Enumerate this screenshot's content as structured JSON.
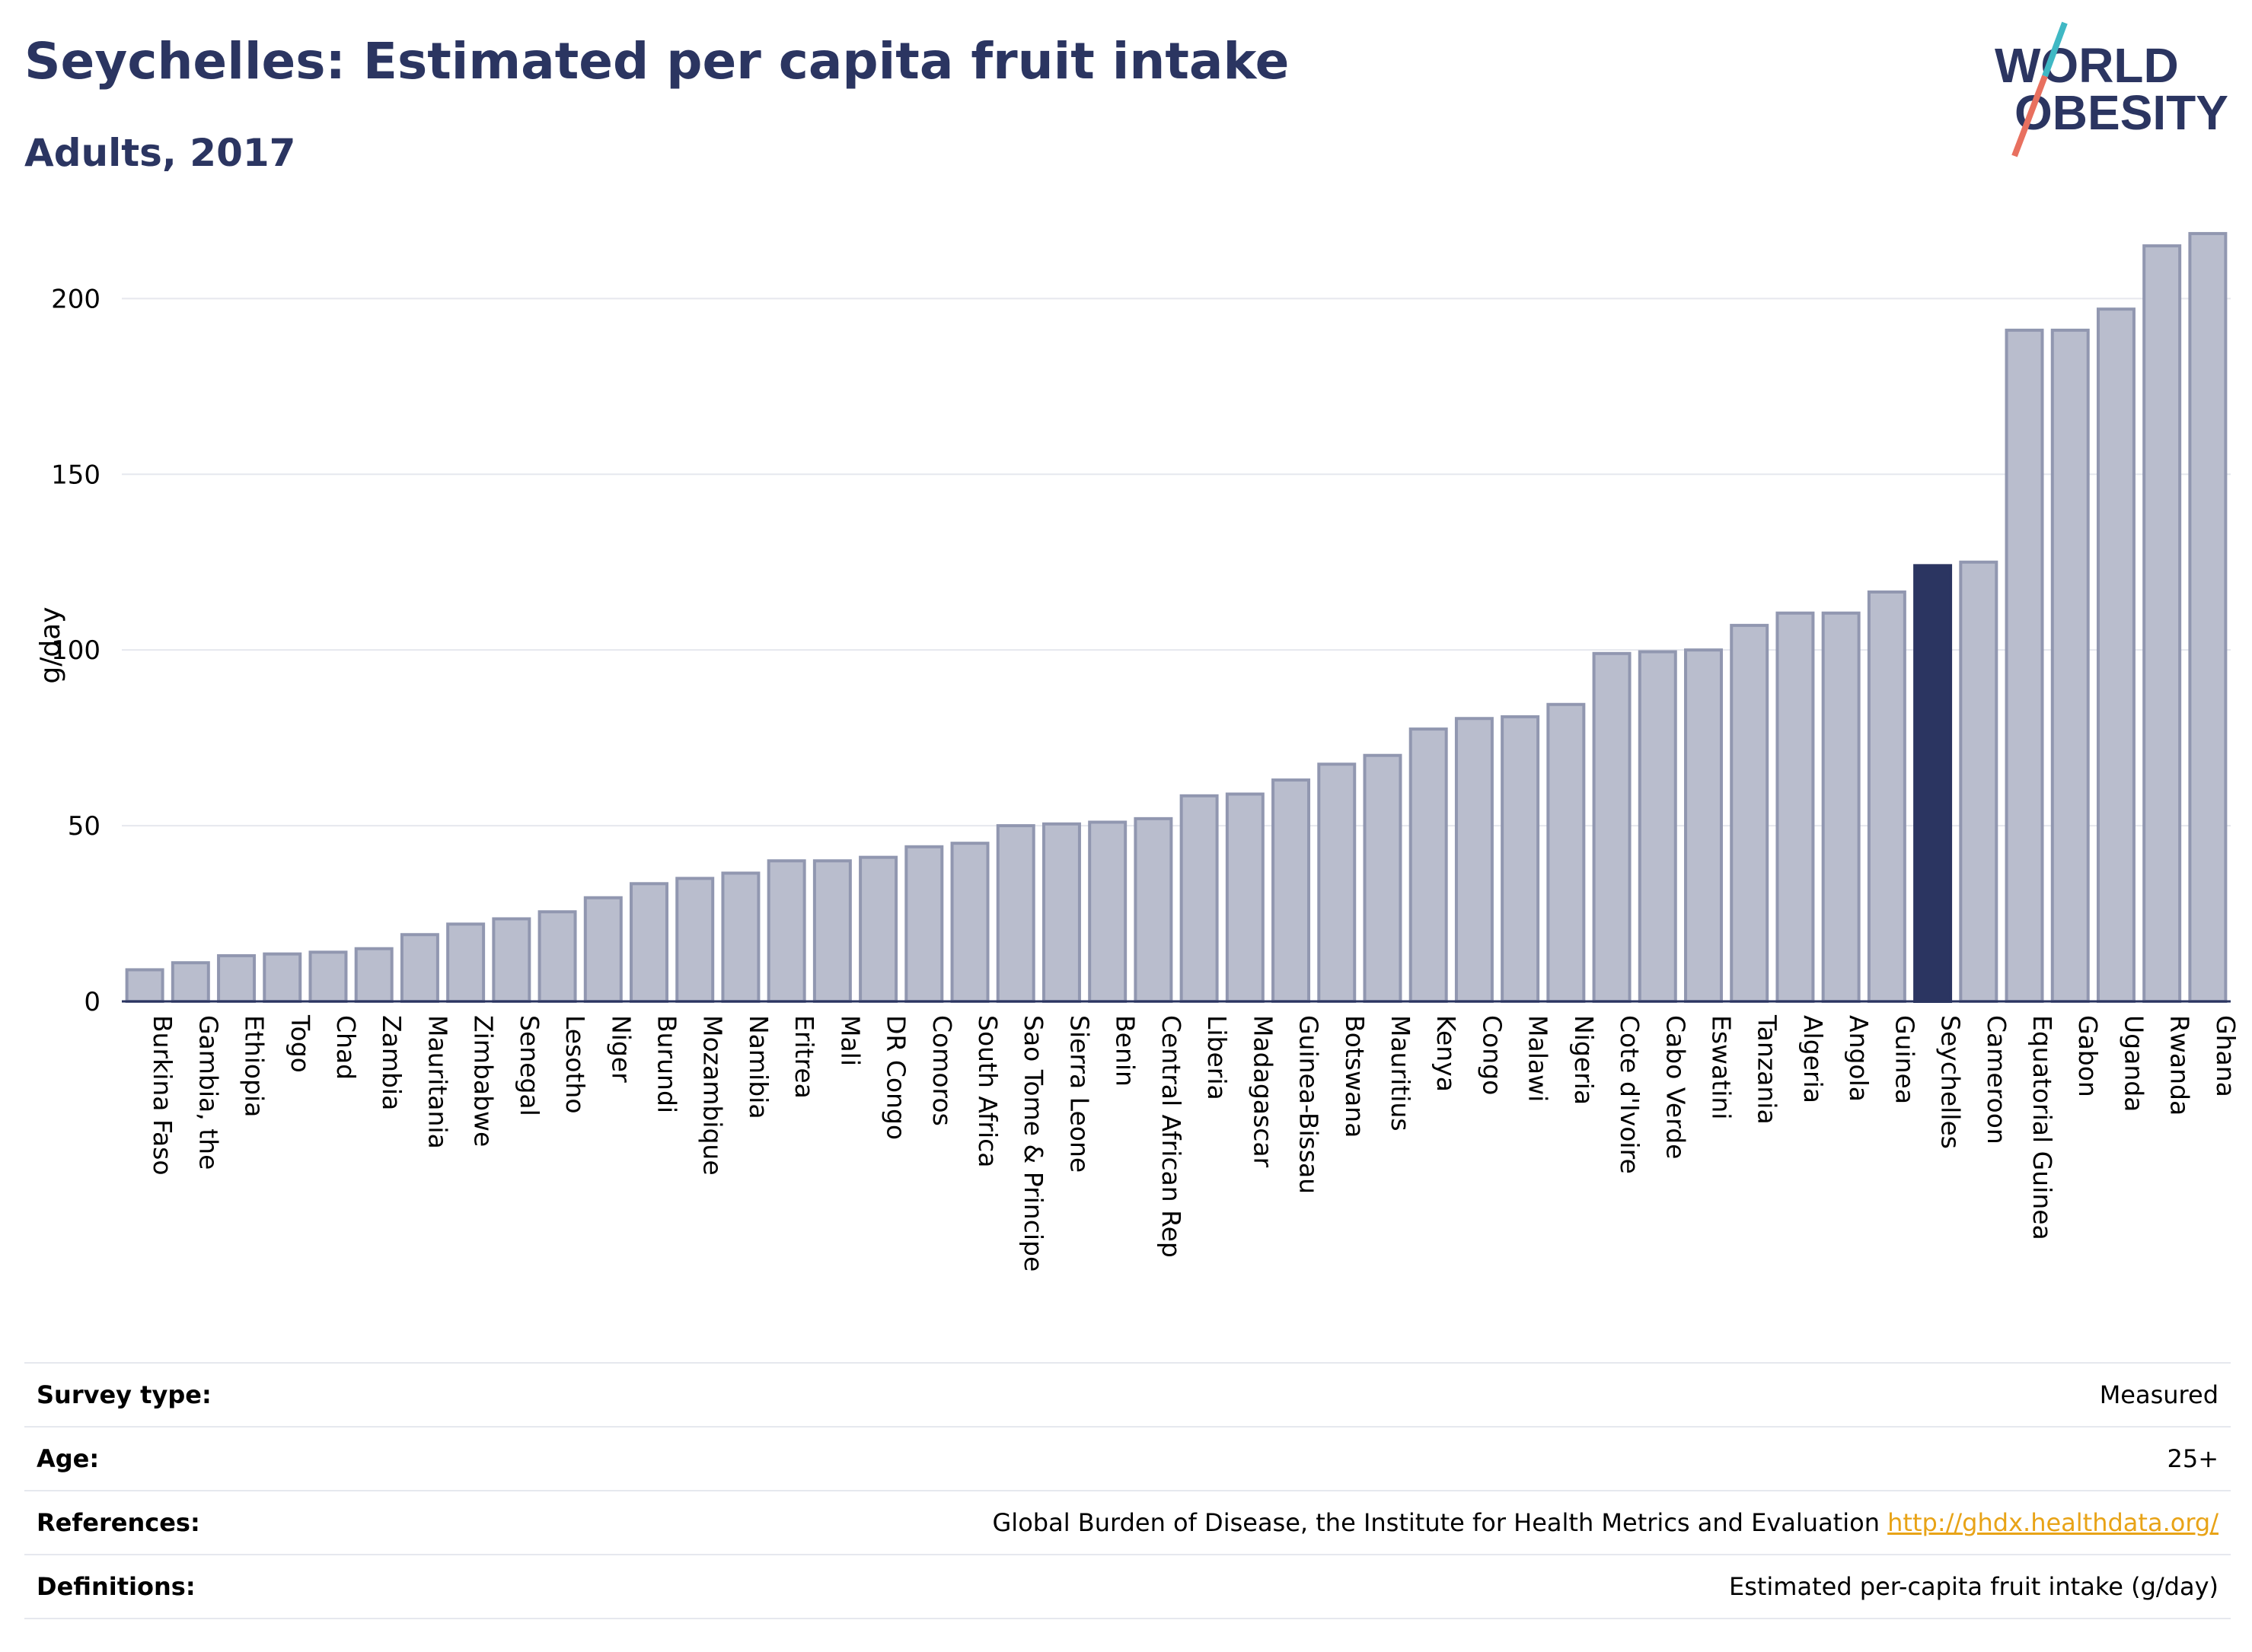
{
  "header": {
    "title": "Seychelles: Estimated per capita fruit intake",
    "subtitle": "Adults, 2017"
  },
  "logo": {
    "line1": "WORLD",
    "line2": "OBESITY",
    "accent_colors": [
      "#3fb8c4",
      "#e8705f"
    ]
  },
  "chart_data": {
    "type": "bar",
    "title": "Seychelles: Estimated per capita fruit intake",
    "subtitle": "Adults, 2017",
    "xlabel": "",
    "ylabel": "g/day",
    "ylim": [
      0,
      220
    ],
    "yticks": [
      0,
      50,
      100,
      150,
      200
    ],
    "grid": true,
    "highlight": "Seychelles",
    "colors": {
      "bar": "#b9bdcd",
      "bar_edge": "#9197b0",
      "highlight": "#2b3561"
    },
    "categories": [
      "Burkina Faso",
      "Gambia, the",
      "Ethiopia",
      "Togo",
      "Chad",
      "Zambia",
      "Mauritania",
      "Zimbabwe",
      "Senegal",
      "Lesotho",
      "Niger",
      "Burundi",
      "Mozambique",
      "Namibia",
      "Eritrea",
      "Mali",
      "DR Congo",
      "Comoros",
      "South Africa",
      "Sao Tome & Principe",
      "Sierra Leone",
      "Benin",
      "Central African Rep",
      "Liberia",
      "Madagascar",
      "Guinea-Bissau",
      "Botswana",
      "Mauritius",
      "Kenya",
      "Congo",
      "Malawi",
      "Nigeria",
      "Cote d'Ivoire",
      "Cabo Verde",
      "Eswatini",
      "Tanzania",
      "Algeria",
      "Angola",
      "Guinea",
      "Seychelles",
      "Cameroon",
      "Equatorial Guinea",
      "Gabon",
      "Uganda",
      "Rwanda",
      "Ghana"
    ],
    "values": [
      9,
      11,
      13,
      13.5,
      14,
      15,
      19,
      22,
      23.5,
      25.5,
      29.5,
      33.5,
      35,
      36.5,
      40,
      40,
      41,
      44,
      45,
      50,
      50.5,
      51,
      52,
      58.5,
      59,
      63,
      67.5,
      70,
      77.5,
      80.5,
      81,
      84.5,
      99,
      99.5,
      100,
      107,
      110.5,
      110.5,
      116.5,
      124,
      125,
      191,
      191,
      197,
      215,
      218.5
    ]
  },
  "info": {
    "rows": [
      {
        "label": "Survey type:",
        "value": "Measured",
        "link": ""
      },
      {
        "label": "Age:",
        "value": "25+",
        "link": ""
      },
      {
        "label": "References:",
        "value": "Global Burden of Disease, the Institute for Health Metrics and Evaluation",
        "link": "http://ghdx.healthdata.org/"
      },
      {
        "label": "Definitions:",
        "value": "Estimated per-capita fruit intake (g/day)",
        "link": ""
      }
    ]
  }
}
